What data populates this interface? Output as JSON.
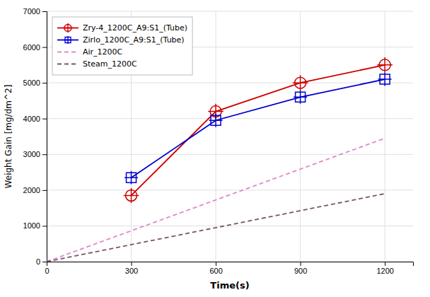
{
  "chart_data": {
    "type": "line",
    "xlabel": "Time(s)",
    "ylabel": "Weight Gain [mg/dm^2]",
    "xlim": [
      0,
      1300
    ],
    "ylim": [
      0,
      7000
    ],
    "xticks": [
      0,
      300,
      600,
      900,
      1200
    ],
    "yticks": [
      0,
      1000,
      2000,
      3000,
      4000,
      5000,
      6000,
      7000
    ],
    "grid": true,
    "legend": "upper left",
    "series": [
      {
        "name": "Zry-4_1200C_A9:S1_(Tube)",
        "color": "#cc0000",
        "marker": "circle",
        "line_style": "solid",
        "x": [
          300,
          600,
          900,
          1200
        ],
        "values": [
          1850,
          4200,
          5000,
          5500
        ]
      },
      {
        "name": "Zirlo_1200C_A9:S1_(Tube)",
        "color": "#0000cc",
        "marker": "square",
        "line_style": "solid",
        "x": [
          300,
          600,
          900,
          1200
        ],
        "values": [
          2350,
          3950,
          4600,
          5100
        ]
      },
      {
        "name": "Air_1200C",
        "color": "#dd88cc",
        "line_style": "dashed",
        "x": [
          0,
          1200
        ],
        "values": [
          0,
          3450
        ]
      },
      {
        "name": "Steam_1200C",
        "color": "#775566",
        "line_style": "dashed",
        "x": [
          0,
          1200
        ],
        "values": [
          0,
          1900
        ]
      }
    ]
  }
}
